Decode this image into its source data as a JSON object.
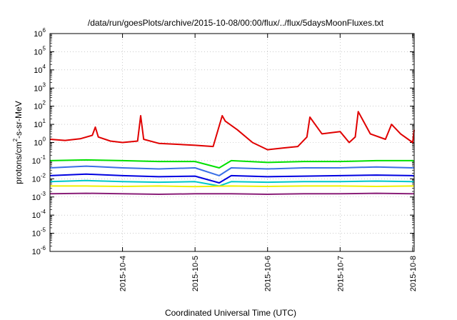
{
  "chart_data": {
    "type": "line",
    "title": "/data/run/goesPlots/archive/2015-10-08/00:00/flux/../flux/5daysMoonFluxes.txt",
    "xlabel": "Coordinated Universal Time (UTC)",
    "ylabel_parts": [
      "protons/cm",
      "2",
      "-s-sr-MeV"
    ],
    "yscale": "log",
    "ylim": [
      1e-06,
      1000000.0
    ],
    "y_ticks": [
      {
        "base": "10",
        "exp": "-6",
        "v": 1e-06
      },
      {
        "base": "10",
        "exp": "-5",
        "v": 1e-05
      },
      {
        "base": "10",
        "exp": "-4",
        "v": 0.0001
      },
      {
        "base": "10",
        "exp": "-3",
        "v": 0.001
      },
      {
        "base": "10",
        "exp": "-2",
        "v": 0.01
      },
      {
        "base": "10",
        "exp": "-1",
        "v": 0.1
      },
      {
        "base": "10",
        "exp": "0",
        "v": 1
      },
      {
        "base": "10",
        "exp": "1",
        "v": 10
      },
      {
        "base": "10",
        "exp": "2",
        "v": 100
      },
      {
        "base": "10",
        "exp": "3",
        "v": 1000
      },
      {
        "base": "10",
        "exp": "4",
        "v": 10000
      },
      {
        "base": "10",
        "exp": "5",
        "v": 100000
      },
      {
        "base": "10",
        "exp": "6",
        "v": 1000000
      }
    ],
    "xlim": [
      "2015-10-03T00:00",
      "2015-10-08T00:30"
    ],
    "x_ticks": [
      "2015-10-4",
      "2015-10-5",
      "2015-10-6",
      "2015-10-7",
      "2015-10-8"
    ],
    "grid": true,
    "series": [
      {
        "color": "#e00000",
        "x": [
          "2015-10-03T00:00",
          "2015-10-03T05:00",
          "2015-10-03T10:00",
          "2015-10-03T14:00",
          "2015-10-03T15:00",
          "2015-10-03T16:00",
          "2015-10-03T20:00",
          "2015-10-04T00:00",
          "2015-10-04T05:00",
          "2015-10-04T06:00",
          "2015-10-04T07:00",
          "2015-10-04T12:00",
          "2015-10-04T18:00",
          "2015-10-05T00:00",
          "2015-10-05T06:00",
          "2015-10-05T09:00",
          "2015-10-05T10:00",
          "2015-10-05T14:00",
          "2015-10-05T19:00",
          "2015-10-06T00:00",
          "2015-10-06T05:00",
          "2015-10-06T10:00",
          "2015-10-06T13:00",
          "2015-10-06T14:00",
          "2015-10-06T18:00",
          "2015-10-07T00:00",
          "2015-10-07T03:00",
          "2015-10-07T05:00",
          "2015-10-07T06:00",
          "2015-10-07T10:00",
          "2015-10-07T15:00",
          "2015-10-07T17:00",
          "2015-10-07T20:00",
          "2015-10-08T00:00",
          "2015-10-08T00:30"
        ],
        "y": [
          1.5,
          1.3,
          1.6,
          2.5,
          7,
          2,
          1.2,
          1,
          1.2,
          30,
          1.5,
          0.9,
          0.8,
          0.7,
          0.6,
          30,
          15,
          5,
          1,
          0.4,
          0.5,
          0.6,
          2,
          25,
          3,
          4,
          1,
          2,
          50,
          3,
          1.5,
          10,
          3,
          1,
          5
        ]
      },
      {
        "color": "#00e000",
        "x": [
          "2015-10-03T00:00",
          "2015-10-03T12:00",
          "2015-10-04T00:00",
          "2015-10-04T12:00",
          "2015-10-05T00:00",
          "2015-10-05T08:00",
          "2015-10-05T12:00",
          "2015-10-06T00:00",
          "2015-10-06T12:00",
          "2015-10-07T00:00",
          "2015-10-07T12:00",
          "2015-10-08T00:00",
          "2015-10-08T00:30"
        ],
        "y": [
          0.1,
          0.11,
          0.1,
          0.09,
          0.09,
          0.04,
          0.1,
          0.08,
          0.09,
          0.09,
          0.1,
          0.1,
          0.09
        ]
      },
      {
        "color": "#3a6fe6",
        "x": [
          "2015-10-03T00:00",
          "2015-10-03T12:00",
          "2015-10-04T00:00",
          "2015-10-04T12:00",
          "2015-10-05T00:00",
          "2015-10-05T08:00",
          "2015-10-05T12:00",
          "2015-10-06T00:00",
          "2015-10-06T12:00",
          "2015-10-07T00:00",
          "2015-10-07T12:00",
          "2015-10-08T00:00",
          "2015-10-08T00:30"
        ],
        "y": [
          0.04,
          0.05,
          0.04,
          0.035,
          0.04,
          0.015,
          0.04,
          0.035,
          0.04,
          0.04,
          0.045,
          0.04,
          0.04
        ]
      },
      {
        "color": "#0000e0",
        "x": [
          "2015-10-03T00:00",
          "2015-10-03T12:00",
          "2015-10-04T00:00",
          "2015-10-04T12:00",
          "2015-10-05T00:00",
          "2015-10-05T08:00",
          "2015-10-05T12:00",
          "2015-10-06T00:00",
          "2015-10-06T12:00",
          "2015-10-07T00:00",
          "2015-10-07T12:00",
          "2015-10-08T00:00",
          "2015-10-08T00:30"
        ],
        "y": [
          0.015,
          0.018,
          0.015,
          0.013,
          0.014,
          0.006,
          0.015,
          0.013,
          0.014,
          0.015,
          0.016,
          0.015,
          0.014
        ]
      },
      {
        "color": "#00c8c8",
        "x": [
          "2015-10-03T00:00",
          "2015-10-03T12:00",
          "2015-10-04T00:00",
          "2015-10-04T12:00",
          "2015-10-05T00:00",
          "2015-10-05T08:00",
          "2015-10-05T12:00",
          "2015-10-06T00:00",
          "2015-10-06T12:00",
          "2015-10-07T00:00",
          "2015-10-07T12:00",
          "2015-10-08T00:00",
          "2015-10-08T00:30"
        ],
        "y": [
          0.007,
          0.008,
          0.007,
          0.0065,
          0.007,
          0.004,
          0.007,
          0.0065,
          0.007,
          0.007,
          0.0075,
          0.007,
          0.007
        ]
      },
      {
        "color": "#f0f000",
        "x": [
          "2015-10-03T00:00",
          "2015-10-03T12:00",
          "2015-10-04T00:00",
          "2015-10-04T12:00",
          "2015-10-05T00:00",
          "2015-10-05T12:00",
          "2015-10-06T00:00",
          "2015-10-06T12:00",
          "2015-10-07T00:00",
          "2015-10-07T12:00",
          "2015-10-08T00:00",
          "2015-10-08T00:30"
        ],
        "y": [
          0.004,
          0.004,
          0.0038,
          0.004,
          0.0037,
          0.004,
          0.0038,
          0.004,
          0.004,
          0.0038,
          0.004,
          0.004
        ]
      },
      {
        "color": "#8a1f78",
        "x": [
          "2015-10-03T00:00",
          "2015-10-03T12:00",
          "2015-10-04T00:00",
          "2015-10-04T12:00",
          "2015-10-05T00:00",
          "2015-10-05T12:00",
          "2015-10-06T00:00",
          "2015-10-06T12:00",
          "2015-10-07T00:00",
          "2015-10-07T12:00",
          "2015-10-08T00:00",
          "2015-10-08T00:30"
        ],
        "y": [
          0.0015,
          0.0016,
          0.0015,
          0.0014,
          0.0015,
          0.0015,
          0.0014,
          0.0015,
          0.0015,
          0.0016,
          0.0015,
          0.0015
        ]
      }
    ]
  }
}
